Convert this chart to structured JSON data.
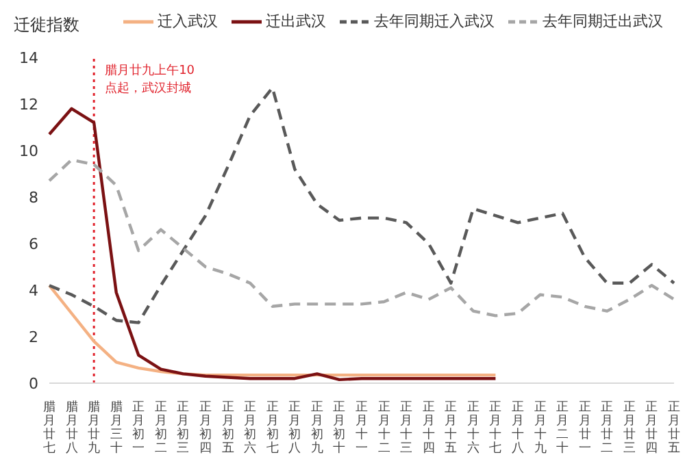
{
  "chart_data": {
    "type": "line",
    "ylabel": "迁徙指数",
    "categories": [
      "腊月廿七",
      "腊月廿八",
      "腊月廿九",
      "腊月三十",
      "正月初一",
      "正月初二",
      "正月初三",
      "正月初四",
      "正月初五",
      "正月初六",
      "正月初七",
      "正月初八",
      "正月初九",
      "正月初十",
      "正月十一",
      "正月十二",
      "正月十三",
      "正月十四",
      "正月十五",
      "正月十六",
      "正月十七",
      "正月十八",
      "正月十九",
      "正月二十",
      "正月廿一",
      "正月廿二",
      "正月廿三",
      "正月廿四",
      "正月廿五"
    ],
    "series": [
      {
        "name": "迁入武汉",
        "color": "#f4b183",
        "line_style": "solid",
        "values": [
          4.2,
          3.0,
          1.8,
          0.9,
          0.65,
          0.5,
          0.4,
          0.35,
          0.35,
          0.35,
          0.35,
          0.35,
          0.35,
          0.35,
          0.35,
          0.35,
          0.35,
          0.35,
          0.35,
          0.35,
          0.35,
          null,
          null,
          null,
          null,
          null,
          null,
          null,
          null
        ]
      },
      {
        "name": "迁出武汉",
        "color": "#7b1113",
        "line_style": "solid",
        "values": [
          10.7,
          11.8,
          11.2,
          3.9,
          1.2,
          0.6,
          0.4,
          0.3,
          0.25,
          0.2,
          0.2,
          0.2,
          0.4,
          0.15,
          0.2,
          0.2,
          0.2,
          0.2,
          0.2,
          0.2,
          0.2,
          null,
          null,
          null,
          null,
          null,
          null,
          null,
          null
        ]
      },
      {
        "name": "去年同期迁入武汉",
        "color": "#595959",
        "line_style": "dashed",
        "values": [
          4.2,
          3.8,
          3.3,
          2.7,
          2.6,
          4.2,
          5.7,
          7.2,
          9.3,
          11.5,
          12.7,
          9.2,
          7.7,
          7.0,
          7.1,
          7.1,
          6.9,
          6.0,
          4.3,
          7.5,
          7.2,
          6.9,
          7.1,
          7.3,
          5.4,
          4.3,
          4.3,
          5.1,
          4.3
        ]
      },
      {
        "name": "去年同期迁出武汉",
        "color": "#a6a6a6",
        "line_style": "dashed",
        "values": [
          8.7,
          9.6,
          9.4,
          8.5,
          5.7,
          6.6,
          5.8,
          5.0,
          4.7,
          4.3,
          3.3,
          3.4,
          3.4,
          3.4,
          3.4,
          3.5,
          3.9,
          3.6,
          4.1,
          3.1,
          2.9,
          3.0,
          3.8,
          3.7,
          3.3,
          3.1,
          3.6,
          4.2,
          3.6
        ]
      }
    ],
    "ylim": [
      0,
      14
    ],
    "yticks": [
      0,
      2,
      4,
      6,
      8,
      10,
      12,
      14
    ],
    "grid": false,
    "legend": "top",
    "marker": "none",
    "ref_lines": [
      {
        "axis": "x",
        "value": "腊月廿九",
        "label": "腊月廿九上午10点起，武汉封城",
        "color": "#e0202a",
        "line_style": "dotted"
      }
    ]
  }
}
